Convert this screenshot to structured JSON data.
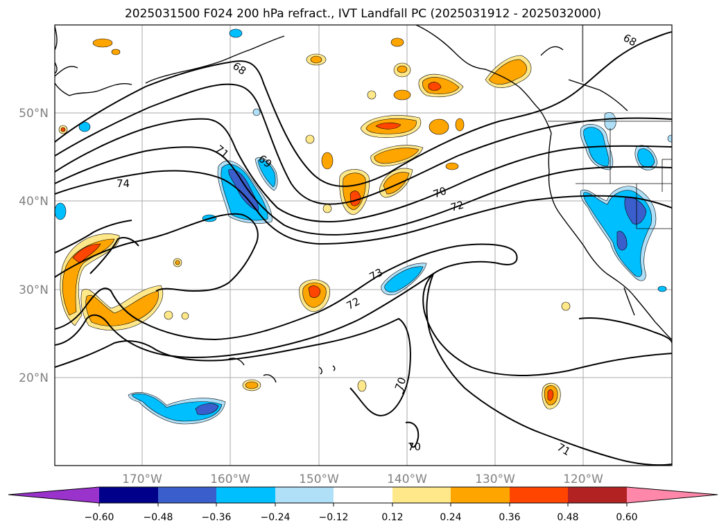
{
  "title": "2025031500 F024 200 hPa refract., IVT Landfall PC (2025031912 - 2025032000)",
  "lon_ticks": [
    "170°W",
    "160°W",
    "150°W",
    "140°W",
    "130°W",
    "120°W"
  ],
  "lat_ticks": [
    "50°N",
    "40°N",
    "30°N",
    "20°N"
  ],
  "contour_labels": [
    "68",
    "68",
    "69",
    "71",
    "74",
    "70",
    "72",
    "73",
    "72",
    "70",
    "70",
    "71"
  ],
  "colorbar": {
    "ticks": [
      "−0.60",
      "−0.48",
      "−0.36",
      "−0.24",
      "−0.12",
      "0.12",
      "0.24",
      "0.36",
      "0.48",
      "0.60"
    ],
    "colors": [
      "#9933cc",
      "#00008b",
      "#3a5fcd",
      "#00bfff",
      "#b0e0f8",
      "#ffffff",
      "#ffe88a",
      "#ffa500",
      "#ff4500",
      "#b22222",
      "#ff88aa"
    ]
  }
}
